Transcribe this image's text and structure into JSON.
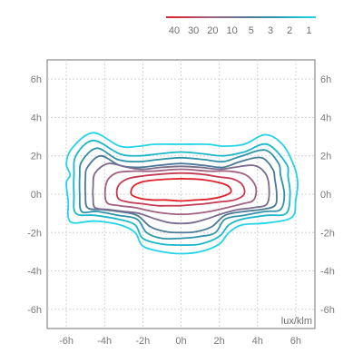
{
  "chart_data": {
    "type": "contour",
    "unit": "lux/klm",
    "x_ticks": [
      "-6h",
      "-4h",
      "-2h",
      "0h",
      "2h",
      "4h",
      "6h"
    ],
    "y_ticks": [
      "6h",
      "4h",
      "2h",
      "0h",
      "-2h",
      "-4h",
      "-6h"
    ],
    "xlim": [
      -7,
      7
    ],
    "ylim": [
      -7,
      7
    ],
    "grid": true,
    "legend_position": "top-right",
    "legend": {
      "labels": [
        "40",
        "30",
        "20",
        "10",
        "5",
        "3",
        "2",
        "1"
      ],
      "gradient": [
        "#e0202a",
        "#c43a52",
        "#a06080",
        "#7a6c8c",
        "#4a7a96",
        "#2f93a8",
        "#1cb8c8",
        "#22d4e6"
      ]
    },
    "series": [
      {
        "level": "1",
        "color": "#22d4e6",
        "points": [
          [
            -5.9,
            -1.2
          ],
          [
            -5.6,
            -1.5
          ],
          [
            -4.5,
            -1.4
          ],
          [
            -3.2,
            -1.6
          ],
          [
            -2.4,
            -2.0
          ],
          [
            -2.0,
            -2.7
          ],
          [
            -1.0,
            -3.0
          ],
          [
            0,
            -3.1
          ],
          [
            1.0,
            -3.0
          ],
          [
            2.0,
            -2.6
          ],
          [
            2.5,
            -2.0
          ],
          [
            3.2,
            -1.6
          ],
          [
            4.5,
            -1.5
          ],
          [
            5.8,
            -1.2
          ],
          [
            6.0,
            -0.3
          ],
          [
            6.1,
            0.6
          ],
          [
            5.9,
            1.5
          ],
          [
            5.3,
            2.6
          ],
          [
            4.4,
            3.1
          ],
          [
            3.3,
            2.6
          ],
          [
            2.2,
            2.5
          ],
          [
            1.4,
            2.6
          ],
          [
            0,
            2.6
          ],
          [
            -1.4,
            2.6
          ],
          [
            -2.2,
            2.5
          ],
          [
            -3.2,
            2.5
          ],
          [
            -4.6,
            3.2
          ],
          [
            -5.7,
            2.4
          ],
          [
            -6.0,
            1.6
          ],
          [
            -5.8,
            1.0
          ],
          [
            -6.0,
            0.6
          ],
          [
            -5.9,
            -0.4
          ]
        ]
      },
      {
        "level": "2",
        "color": "#1cb8c8",
        "points": [
          [
            -5.5,
            -1.0
          ],
          [
            -4.5,
            -1.1
          ],
          [
            -3.3,
            -1.3
          ],
          [
            -2.4,
            -1.6
          ],
          [
            -2.0,
            -2.3
          ],
          [
            -1.0,
            -2.6
          ],
          [
            0,
            -2.65
          ],
          [
            1.0,
            -2.6
          ],
          [
            2.0,
            -2.2
          ],
          [
            2.5,
            -1.6
          ],
          [
            3.2,
            -1.3
          ],
          [
            4.5,
            -1.1
          ],
          [
            5.5,
            -1.0
          ],
          [
            5.7,
            0
          ],
          [
            5.6,
            0.9
          ],
          [
            5.5,
            1.6
          ],
          [
            4.5,
            2.6
          ],
          [
            3.3,
            2.2
          ],
          [
            2.2,
            2.0
          ],
          [
            1.2,
            2.1
          ],
          [
            0,
            2.2
          ],
          [
            -1.2,
            2.1
          ],
          [
            -2.2,
            2.0
          ],
          [
            -3.2,
            2.1
          ],
          [
            -4.6,
            2.8
          ],
          [
            -5.5,
            2.0
          ],
          [
            -5.6,
            1.0
          ],
          [
            -5.6,
            0
          ]
        ]
      },
      {
        "level": "3",
        "color": "#2f93a8",
        "points": [
          [
            -5.2,
            -0.9
          ],
          [
            -4.4,
            -0.9
          ],
          [
            -3.3,
            -1.1
          ],
          [
            -2.3,
            -1.3
          ],
          [
            -1.8,
            -2.0
          ],
          [
            -1.0,
            -2.3
          ],
          [
            0,
            -2.3
          ],
          [
            1.0,
            -2.2
          ],
          [
            1.8,
            -2.0
          ],
          [
            2.3,
            -1.3
          ],
          [
            3.3,
            -1.1
          ],
          [
            4.4,
            -0.9
          ],
          [
            5.2,
            -0.8
          ],
          [
            5.4,
            0
          ],
          [
            5.2,
            1.0
          ],
          [
            5.1,
            1.6
          ],
          [
            4.4,
            2.3
          ],
          [
            3.2,
            2.0
          ],
          [
            2.2,
            1.7
          ],
          [
            1.2,
            1.8
          ],
          [
            0,
            1.9
          ],
          [
            -1.2,
            1.8
          ],
          [
            -2.2,
            1.7
          ],
          [
            -3.3,
            1.8
          ],
          [
            -4.4,
            2.4
          ],
          [
            -5.2,
            1.7
          ],
          [
            -5.3,
            0.9
          ],
          [
            -5.3,
            0
          ]
        ]
      },
      {
        "level": "5",
        "color": "#4a7a96",
        "points": [
          [
            -4.9,
            -0.7
          ],
          [
            -4.2,
            -0.8
          ],
          [
            -3.3,
            -0.9
          ],
          [
            -2.3,
            -1.1
          ],
          [
            -1.6,
            -1.7
          ],
          [
            -0.8,
            -1.95
          ],
          [
            0,
            -2.0
          ],
          [
            0.8,
            -1.95
          ],
          [
            1.6,
            -1.7
          ],
          [
            2.3,
            -1.1
          ],
          [
            3.3,
            -0.9
          ],
          [
            4.2,
            -0.8
          ],
          [
            4.9,
            -0.6
          ],
          [
            5.0,
            0
          ],
          [
            4.9,
            0.8
          ],
          [
            4.8,
            1.3
          ],
          [
            4.2,
            1.9
          ],
          [
            3.1,
            1.7
          ],
          [
            2.2,
            1.4
          ],
          [
            1.2,
            1.5
          ],
          [
            0,
            1.6
          ],
          [
            -1.2,
            1.5
          ],
          [
            -2.2,
            1.4
          ],
          [
            -3.2,
            1.5
          ],
          [
            -4.2,
            2.0
          ],
          [
            -4.9,
            1.4
          ],
          [
            -5.0,
            0.8
          ],
          [
            -5.0,
            0
          ]
        ]
      },
      {
        "level": "10",
        "color": "#7a6c8c",
        "points": [
          [
            -4.5,
            -0.7
          ],
          [
            -3.8,
            -0.8
          ],
          [
            -3.0,
            -0.9
          ],
          [
            -2.2,
            -1.0
          ],
          [
            -1.3,
            -1.3
          ],
          [
            -0.5,
            -1.5
          ],
          [
            0.5,
            -1.5
          ],
          [
            1.3,
            -1.3
          ],
          [
            2.2,
            -1.0
          ],
          [
            3.0,
            -0.8
          ],
          [
            3.8,
            -0.7
          ],
          [
            4.5,
            -0.5
          ],
          [
            4.6,
            0.4
          ],
          [
            4.4,
            1.1
          ],
          [
            3.8,
            1.5
          ],
          [
            2.8,
            1.4
          ],
          [
            2.0,
            1.3
          ],
          [
            1.0,
            1.4
          ],
          [
            0,
            1.45
          ],
          [
            -1.0,
            1.4
          ],
          [
            -2.0,
            1.3
          ],
          [
            -2.8,
            1.4
          ],
          [
            -3.8,
            1.6
          ],
          [
            -4.5,
            1.1
          ],
          [
            -4.6,
            0.4
          ],
          [
            -4.6,
            -0.2
          ]
        ]
      },
      {
        "level": "20",
        "color": "#a06080",
        "points": [
          [
            -3.9,
            -0.4
          ],
          [
            -3.2,
            -0.6
          ],
          [
            -2.4,
            -0.7
          ],
          [
            -1.5,
            -0.9
          ],
          [
            -0.8,
            -1.0
          ],
          [
            0,
            -1.05
          ],
          [
            0.8,
            -1.0
          ],
          [
            1.5,
            -0.9
          ],
          [
            2.4,
            -0.7
          ],
          [
            3.2,
            -0.5
          ],
          [
            3.8,
            -0.3
          ],
          [
            3.9,
            0.4
          ],
          [
            3.4,
            1.0
          ],
          [
            2.5,
            1.2
          ],
          [
            1.5,
            1.2
          ],
          [
            0,
            1.3
          ],
          [
            -1.5,
            1.2
          ],
          [
            -2.5,
            1.2
          ],
          [
            -3.4,
            1.1
          ],
          [
            -3.9,
            0.6
          ]
        ]
      },
      {
        "level": "30",
        "color": "#c43a52",
        "points": [
          [
            -3.3,
            -0.2
          ],
          [
            -2.8,
            -0.4
          ],
          [
            -2.0,
            -0.5
          ],
          [
            -1.2,
            -0.6
          ],
          [
            -0.6,
            -0.6
          ],
          [
            0,
            -0.6
          ],
          [
            0.6,
            -0.55
          ],
          [
            1.2,
            -0.5
          ],
          [
            2.0,
            -0.4
          ],
          [
            2.8,
            -0.3
          ],
          [
            3.3,
            0.0
          ],
          [
            3.2,
            0.5
          ],
          [
            2.7,
            0.8
          ],
          [
            2.0,
            0.9
          ],
          [
            1.0,
            1.05
          ],
          [
            0,
            1.1
          ],
          [
            -1.0,
            1.05
          ],
          [
            -2.0,
            0.95
          ],
          [
            -2.8,
            0.8
          ],
          [
            -3.3,
            0.4
          ]
        ]
      },
      {
        "level": "40",
        "color": "#e0202a",
        "points": [
          [
            -2.6,
            0.0
          ],
          [
            -2.2,
            -0.2
          ],
          [
            -1.5,
            -0.3
          ],
          [
            -0.8,
            -0.3
          ],
          [
            0,
            -0.35
          ],
          [
            0.8,
            -0.3
          ],
          [
            1.5,
            -0.25
          ],
          [
            2.2,
            -0.1
          ],
          [
            2.6,
            0.1
          ],
          [
            2.5,
            0.4
          ],
          [
            2.0,
            0.6
          ],
          [
            1.2,
            0.75
          ],
          [
            0.4,
            0.8
          ],
          [
            -0.4,
            0.8
          ],
          [
            -1.2,
            0.75
          ],
          [
            -2.0,
            0.65
          ],
          [
            -2.5,
            0.4
          ]
        ]
      }
    ]
  }
}
